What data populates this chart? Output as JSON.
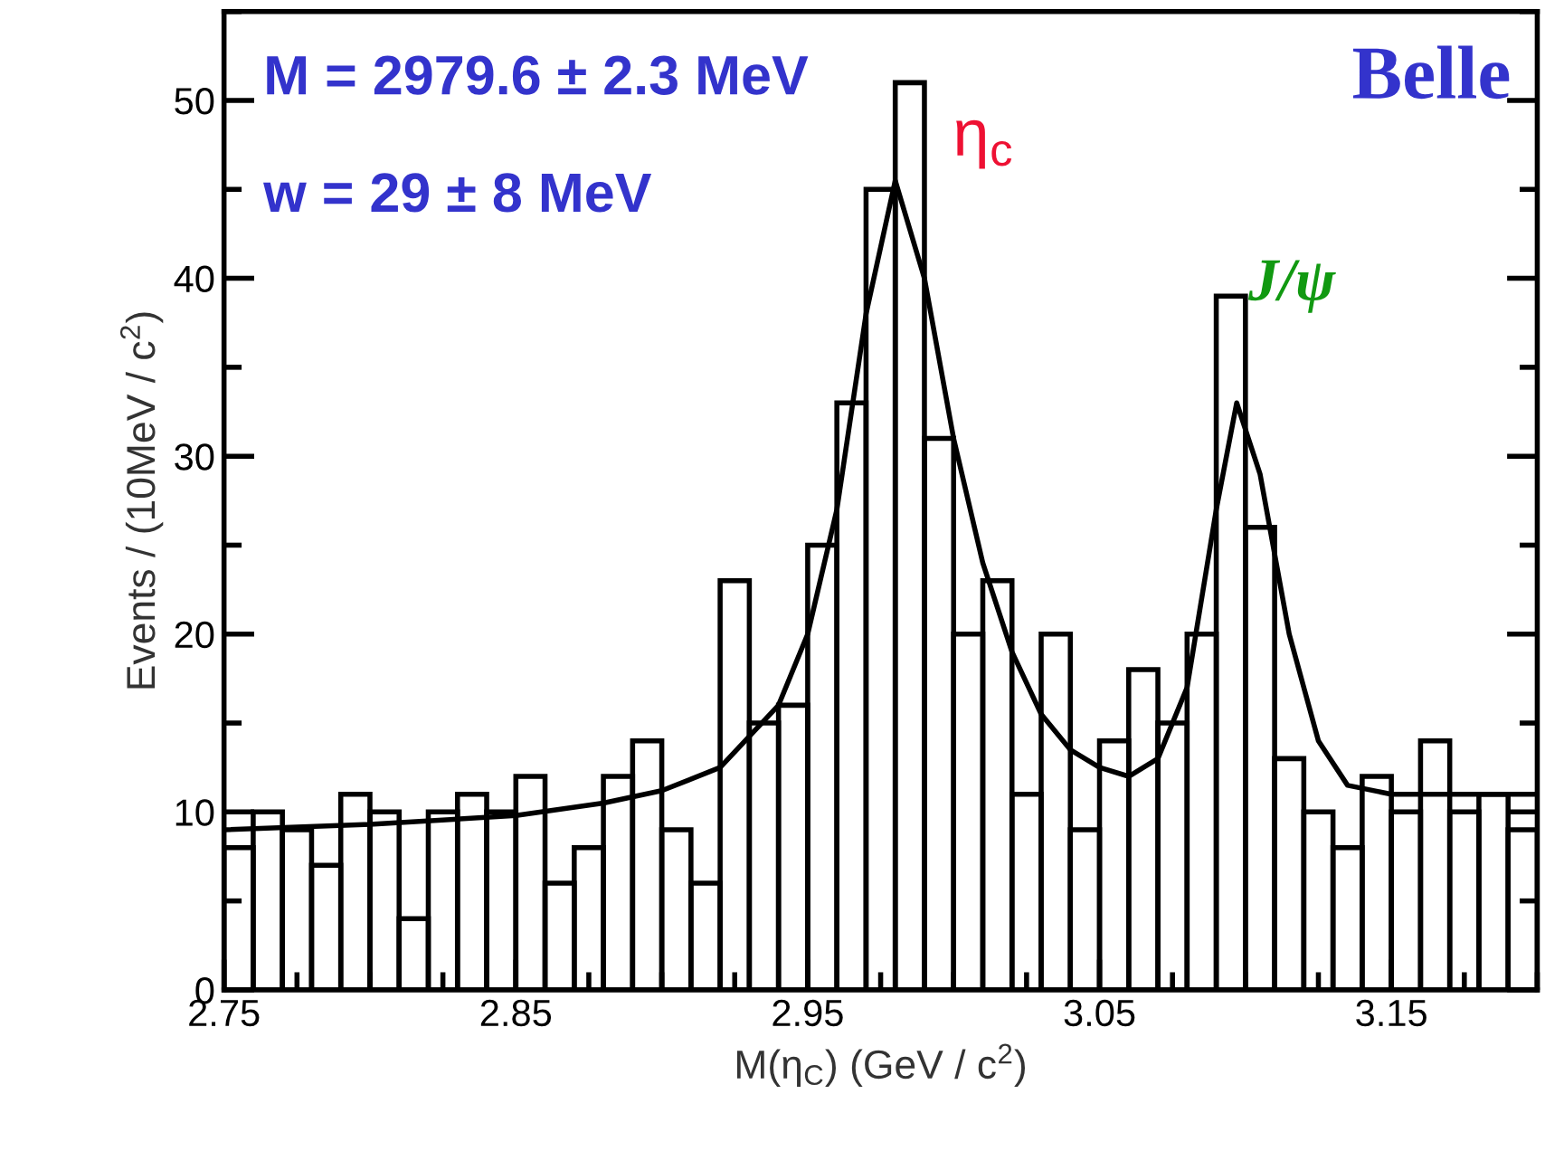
{
  "chart_data": {
    "type": "histogram",
    "xlabel": "M(η$_{C}$) (GeV / c$^{2}$)",
    "ylabel": "Events / (10MeV / c$^{2}$)",
    "bins": [
      2.75,
      2.76,
      2.77,
      2.78,
      2.79,
      2.8,
      2.81,
      2.82,
      2.83,
      2.84,
      2.85,
      2.86,
      2.87,
      2.88,
      2.89,
      2.9,
      2.91,
      2.92,
      2.93,
      2.94,
      2.95,
      2.96,
      2.97,
      2.98,
      2.99,
      3.0,
      3.01,
      3.02,
      3.03,
      3.04,
      3.05,
      3.06,
      3.07,
      3.08,
      3.09,
      3.1,
      3.11,
      3.12,
      3.13,
      3.14,
      3.15,
      3.16,
      3.17,
      3.18,
      3.19,
      3.2
    ],
    "series": [
      {
        "color": "#000000",
        "values": [
          8,
          10,
          9,
          7,
          11,
          10,
          4,
          10,
          11,
          10,
          12,
          6,
          8,
          12,
          14,
          9,
          6,
          23,
          15,
          16,
          25,
          33,
          45,
          51,
          31,
          20,
          23,
          11,
          20,
          9,
          14,
          18,
          15,
          20,
          39,
          26,
          13,
          10,
          8,
          12,
          10,
          14,
          10,
          11,
          9
        ]
      },
      {
        "type": "line",
        "color": "#000000",
        "x": [
          2.75,
          2.8,
          2.85,
          2.88,
          2.9,
          2.92,
          2.94,
          2.95,
          2.96,
          2.97,
          2.98,
          2.99,
          3.0,
          3.01,
          3.02,
          3.03,
          3.04,
          3.05,
          3.06,
          3.07,
          3.08,
          3.09,
          3.097,
          3.105,
          3.115,
          3.125,
          3.135,
          3.15,
          3.2
        ],
        "values": [
          9.0,
          9.3,
          9.8,
          10.5,
          11.2,
          12.5,
          16,
          20,
          27,
          38,
          45.5,
          40,
          31,
          24,
          19,
          15.5,
          13.5,
          12.5,
          12,
          13,
          17,
          27,
          33,
          29,
          20,
          14,
          11.5,
          11,
          11
        ]
      }
    ],
    "xlim": [
      2.75,
      3.2
    ],
    "xticks": [
      2.75,
      2.85,
      2.95,
      3.05,
      3.15
    ],
    "ylim": [
      0,
      55
    ],
    "yticks": [
      0,
      10,
      20,
      30,
      40,
      50
    ],
    "annotations": [
      "M = 2979.6 ± 2.3 MeV",
      "w = 29 ± 8 MeV",
      "η$_{c}$",
      "J/ψ",
      "Belle"
    ],
    "grid": false,
    "legend": false
  }
}
